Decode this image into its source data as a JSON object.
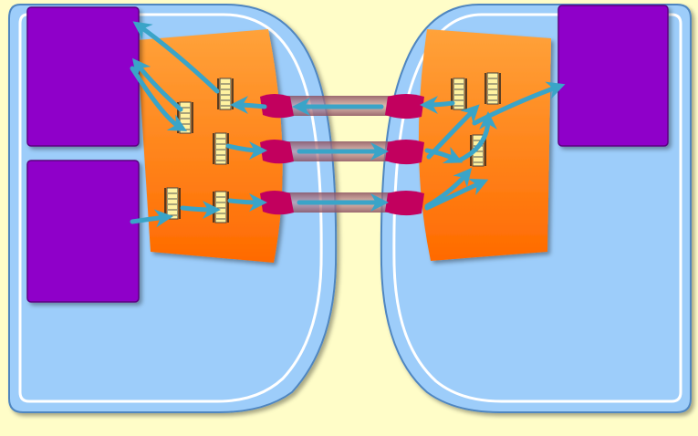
{
  "diagram": {
    "colors": {
      "background": "#fffdc8",
      "host_fill": "#9dcdfa",
      "host_stroke": "#ffffff",
      "process_fill": "#8f00c9",
      "adapter_top": "#ffa23a",
      "adapter_bottom": "#ff6a00",
      "channel_end": "#c2005e",
      "channel_body": "#a06070",
      "arrow": "#3aa4c8",
      "queue": "#fff2a0"
    },
    "hosts": [
      {
        "id": "left-host"
      },
      {
        "id": "right-host"
      }
    ],
    "processes": [
      {
        "id": "process-left-top"
      },
      {
        "id": "process-left-bottom"
      },
      {
        "id": "process-right-top"
      }
    ],
    "adapters": [
      {
        "id": "adapter-left"
      },
      {
        "id": "adapter-right"
      }
    ],
    "channels": [
      {
        "id": "channel-1",
        "direction": "right-to-left"
      },
      {
        "id": "channel-2",
        "direction": "left-to-right"
      },
      {
        "id": "channel-3",
        "direction": "left-to-right"
      }
    ],
    "queues": [
      {
        "id": "queue-l1"
      },
      {
        "id": "queue-l2"
      },
      {
        "id": "queue-l3"
      },
      {
        "id": "queue-l4"
      },
      {
        "id": "queue-l5"
      },
      {
        "id": "queue-r1"
      },
      {
        "id": "queue-r2"
      },
      {
        "id": "queue-r3"
      }
    ]
  }
}
